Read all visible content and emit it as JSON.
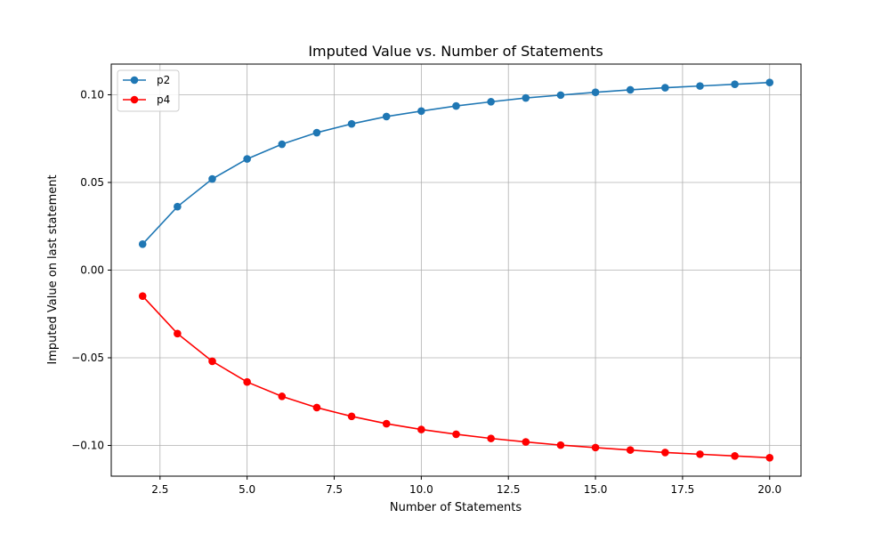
{
  "chart_data": {
    "type": "line",
    "title": "Imputed Value vs. Number of Statements",
    "xlabel": "Number of Statements",
    "ylabel": "Imputed Value on last statement",
    "xlim": [
      1.1,
      20.9
    ],
    "ylim": [
      -0.1175,
      0.1175
    ],
    "xticks": [
      2.5,
      5.0,
      7.5,
      10.0,
      12.5,
      15.0,
      17.5,
      20.0
    ],
    "xtick_labels": [
      "2.5",
      "5.0",
      "7.5",
      "10.0",
      "12.5",
      "15.0",
      "17.5",
      "20.0"
    ],
    "yticks": [
      -0.1,
      -0.05,
      0.0,
      0.05,
      0.1
    ],
    "ytick_labels": [
      "−0.10",
      "−0.05",
      "0.00",
      "0.05",
      "0.10"
    ],
    "grid": true,
    "legend_position": "top-left",
    "x": [
      2,
      3,
      4,
      5,
      6,
      7,
      8,
      9,
      10,
      11,
      12,
      13,
      14,
      15,
      16,
      17,
      18,
      19,
      20
    ],
    "series": [
      {
        "name": "p2",
        "color": "#1f77b4",
        "marker": "circle",
        "values": [
          0.0148,
          0.0362,
          0.052,
          0.0634,
          0.0718,
          0.0784,
          0.0834,
          0.0876,
          0.0907,
          0.0936,
          0.096,
          0.0982,
          0.0998,
          0.1014,
          0.1028,
          0.104,
          0.105,
          0.106,
          0.107
        ]
      },
      {
        "name": "p4",
        "color": "#ff0000",
        "marker": "circle",
        "values": [
          -0.0148,
          -0.0362,
          -0.052,
          -0.0638,
          -0.072,
          -0.0784,
          -0.0834,
          -0.0876,
          -0.0909,
          -0.0936,
          -0.096,
          -0.098,
          -0.0998,
          -0.1012,
          -0.1026,
          -0.104,
          -0.105,
          -0.106,
          -0.107
        ]
      }
    ]
  }
}
